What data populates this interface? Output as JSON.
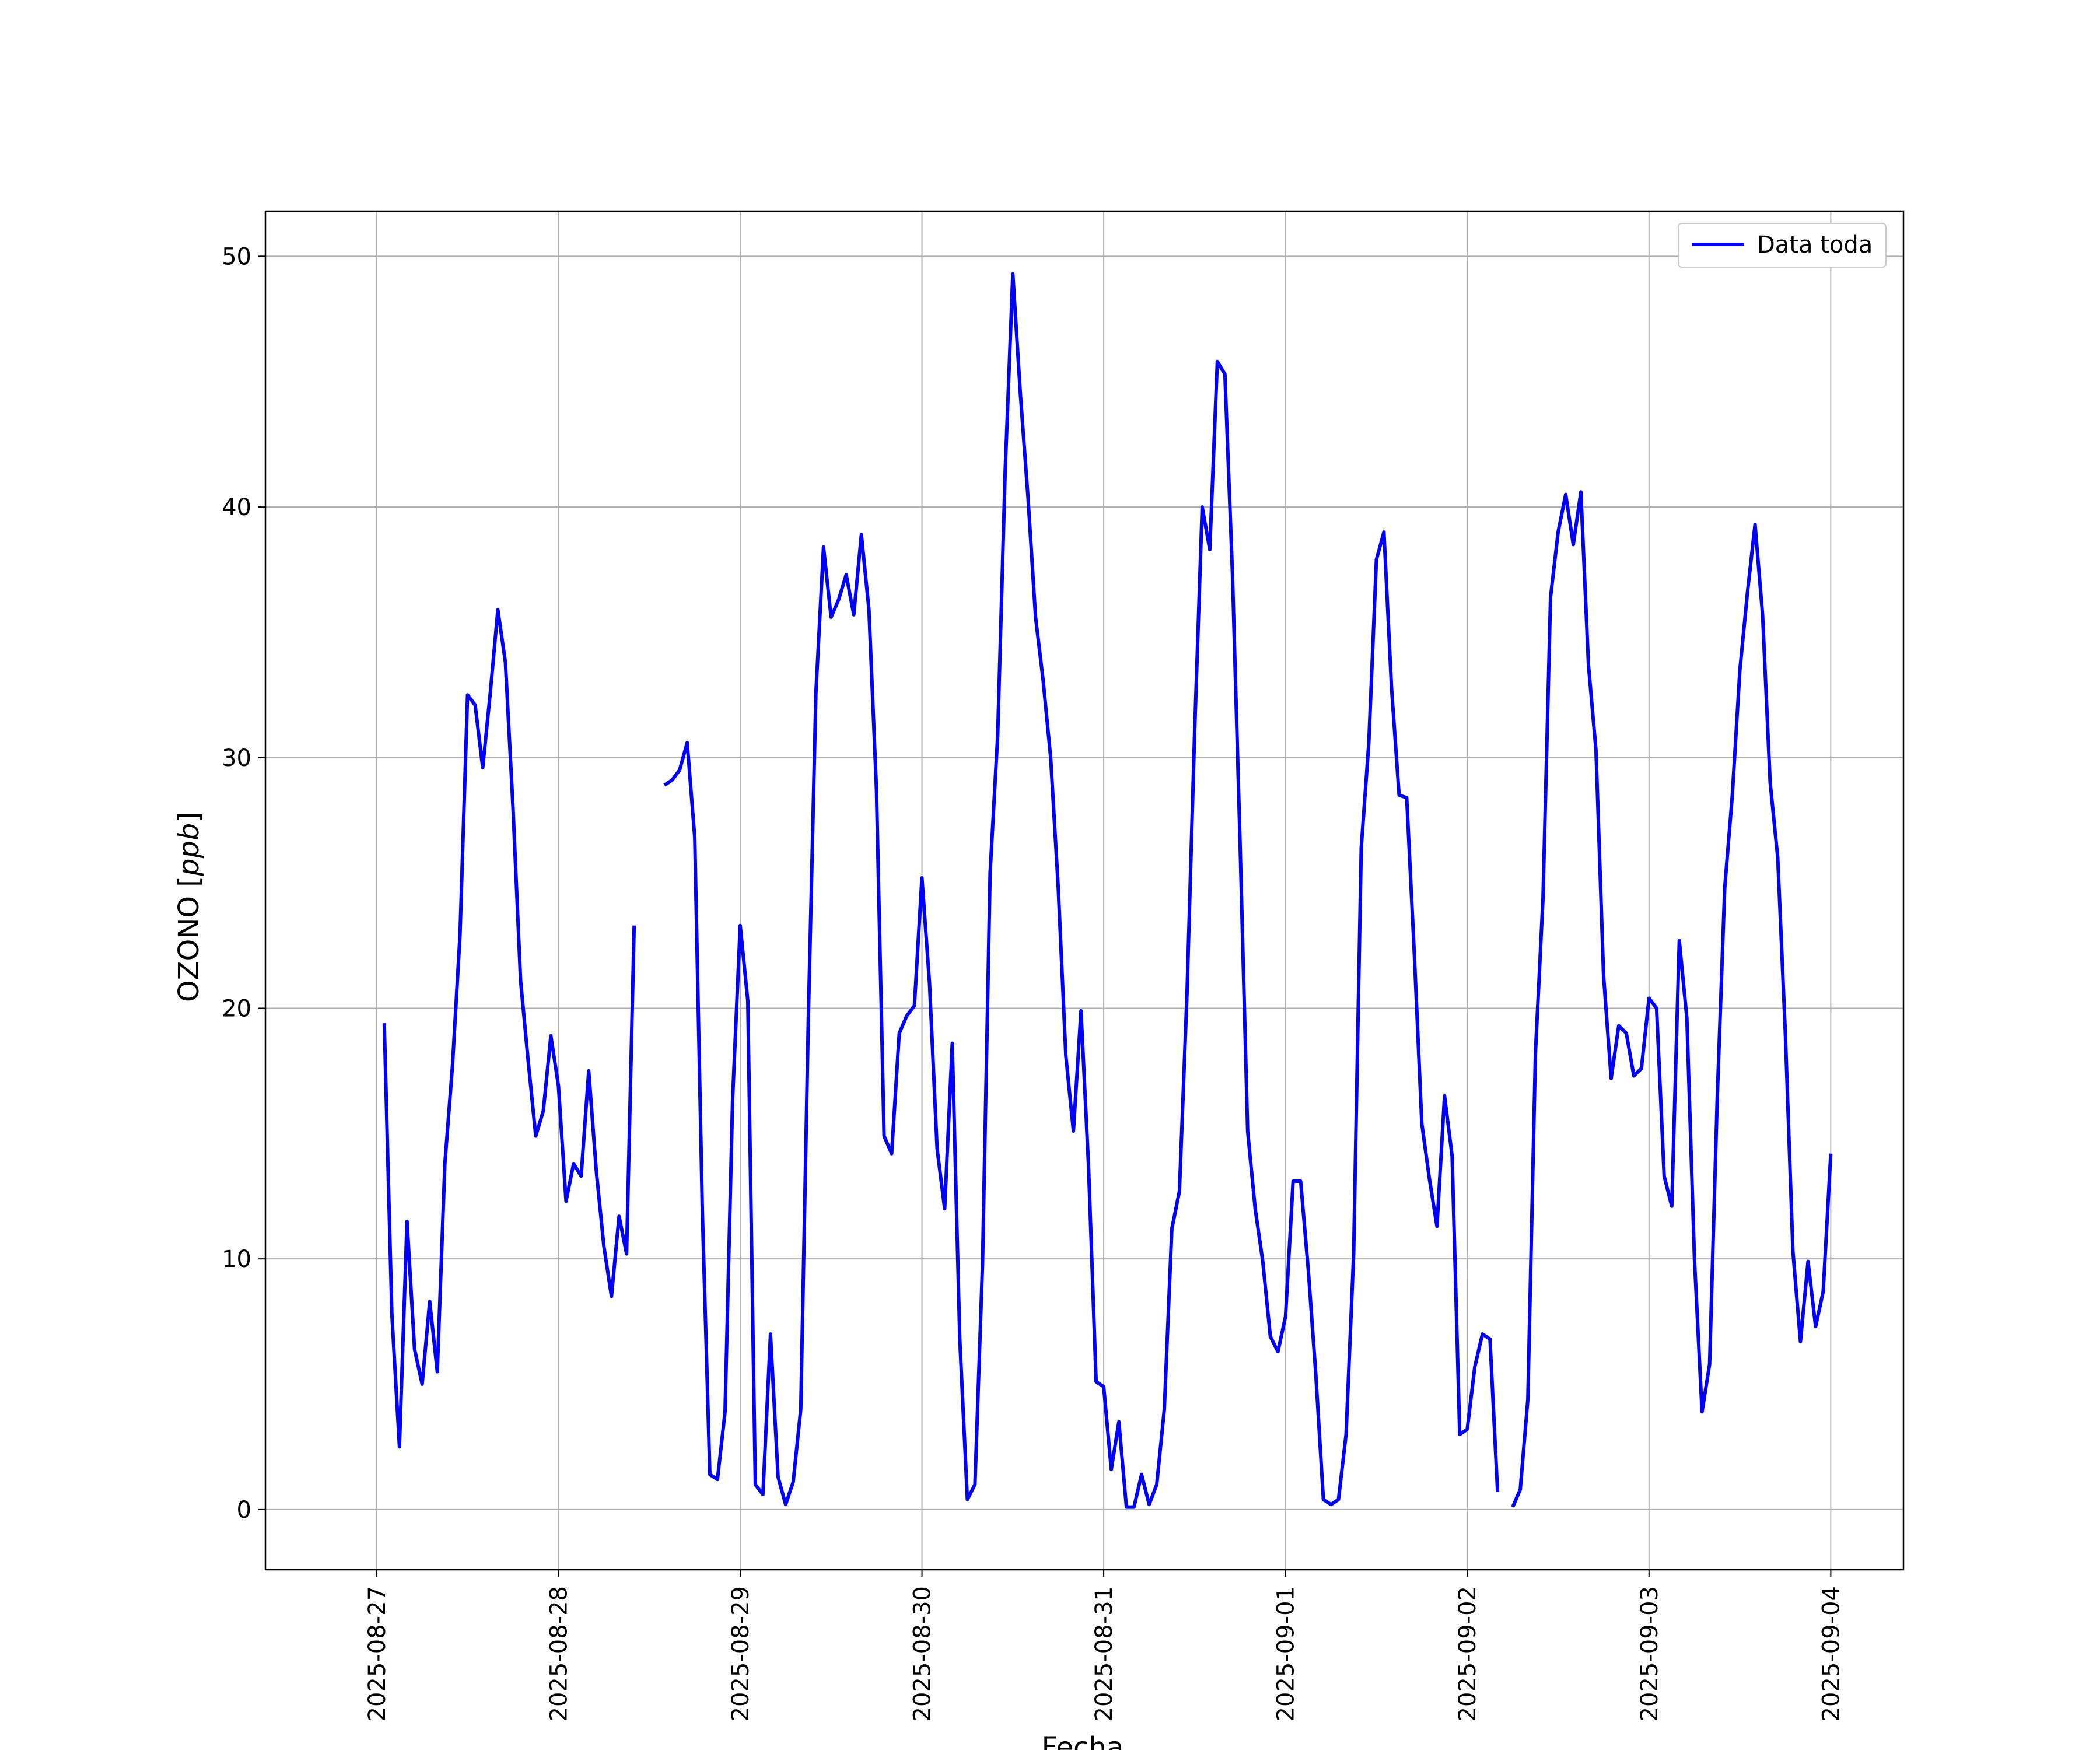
{
  "chart_data": {
    "type": "line",
    "xlabel": "Fecha",
    "ylabel": "OZONO [ppb]",
    "ylabel_parts": {
      "name": "OZONO [",
      "unit": "ppb",
      "close": "]"
    },
    "x_ticks": [
      "2025-08-27",
      "2025-08-28",
      "2025-08-29",
      "2025-08-30",
      "2025-08-31",
      "2025-09-01",
      "2025-09-02",
      "2025-09-03",
      "2025-09-04"
    ],
    "y_ticks": [
      0,
      10,
      20,
      30,
      40,
      50
    ],
    "xlim": [
      "2025-08-26T09:18",
      "2025-09-04T09:36"
    ],
    "ylim": [
      -2.4,
      51.8
    ],
    "grid": true,
    "legend_position": "top-right",
    "series": [
      {
        "name": "Data toda",
        "color": "#0000ff",
        "segments": [
          {
            "start": "2025-08-27T01:00",
            "step_hours": 1,
            "values": [
              19.4,
              7.8,
              2.5,
              11.5,
              6.4,
              5.0,
              8.3,
              5.5,
              13.8,
              17.7,
              22.9,
              32.5,
              32.1,
              29.6,
              32.6,
              35.9,
              33.8,
              28.0,
              21.1,
              17.9,
              14.9,
              15.9,
              18.9,
              16.9,
              12.3,
              13.8,
              13.3,
              17.5,
              13.5,
              10.5,
              8.5,
              11.7,
              10.2,
              23.3
            ]
          },
          {
            "start": "2025-08-28T14:00",
            "step_hours": 1,
            "values": [
              28.9,
              29.1,
              29.5,
              30.6,
              26.8,
              11.9,
              1.4,
              1.2,
              3.9,
              16.4,
              23.3,
              20.3,
              1.0,
              0.6,
              7.0,
              1.3,
              0.2,
              1.1,
              4.0,
              19.6,
              32.6,
              38.4,
              35.6,
              36.3,
              37.3,
              35.7,
              38.9,
              35.9,
              28.7,
              14.9,
              14.2,
              19.0,
              19.7,
              20.1,
              25.2,
              21.0,
              14.4,
              12.0,
              18.6,
              6.8,
              0.4,
              1.0,
              9.8,
              25.4,
              30.9,
              41.5,
              49.3,
              44.5,
              40.4,
              35.6,
              33.1,
              30.0,
              24.8,
              18.1,
              15.1,
              19.9,
              13.7,
              5.1,
              4.9,
              1.6,
              3.5,
              0.1,
              0.1,
              1.4,
              0.2,
              1.0,
              4.0,
              11.2,
              12.7,
              20.6,
              31.0,
              40.0,
              38.3,
              45.8,
              45.3,
              37.3,
              26.6,
              15.1,
              12.0,
              9.9,
              6.9,
              6.3,
              7.7,
              13.1,
              13.1,
              9.6,
              5.4,
              0.4,
              0.2,
              0.4,
              3.0,
              10.2,
              26.4,
              30.6,
              37.9,
              39.0,
              32.8,
              28.5,
              28.4,
              22.2,
              15.4,
              13.2,
              11.3,
              16.5,
              14.1,
              3.0,
              3.2,
              5.7,
              7.0,
              6.8,
              0.7
            ]
          },
          {
            "start": "2025-09-02T06:00",
            "step_hours": 1,
            "values": [
              0.1,
              0.8,
              4.4,
              18.2,
              24.4,
              36.4,
              39.0,
              40.5,
              38.5,
              40.6,
              33.7,
              30.3,
              21.3,
              17.2,
              19.3,
              19.0,
              17.3,
              17.6,
              20.4,
              20.0,
              13.3,
              12.1,
              22.7,
              19.6,
              10.0,
              3.9,
              5.8,
              16.3,
              24.8,
              28.5,
              33.5,
              36.6,
              39.3,
              35.7,
              29.0,
              26.0,
              19.0,
              10.3,
              6.7,
              9.9,
              7.3,
              8.7,
              14.2
            ]
          }
        ]
      }
    ]
  }
}
